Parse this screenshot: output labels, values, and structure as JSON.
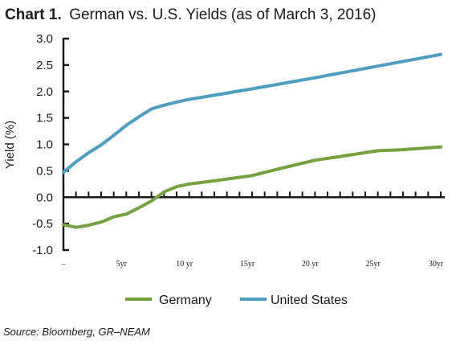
{
  "chart_data": {
    "type": "line",
    "title_prefix": "Chart 1.",
    "title": "German vs. U.S. Yields (as of March 3, 2016)",
    "ylabel": "Yield (%)",
    "xlabel": "",
    "ylim": [
      -1.0,
      3.0
    ],
    "xlim": [
      0,
      30
    ],
    "yticks": [
      {
        "value": 3.0,
        "label": "3.0"
      },
      {
        "value": 2.5,
        "label": "2.5"
      },
      {
        "value": 2.0,
        "label": "2.0"
      },
      {
        "value": 1.5,
        "label": "1.5"
      },
      {
        "value": 1.0,
        "label": "1.0"
      },
      {
        "value": 0.5,
        "label": "0.5"
      },
      {
        "value": 0.0,
        "label": "0.0"
      },
      {
        "value": -0.5,
        "label": "-0.5"
      },
      {
        "value": -1.0,
        "label": "-1.0"
      }
    ],
    "xticks": [
      {
        "value": 0,
        "label": "–"
      },
      {
        "value": 5,
        "label": "5yr"
      },
      {
        "value": 10,
        "label": "10 yr"
      },
      {
        "value": 15,
        "label": "15yr"
      },
      {
        "value": 20,
        "label": "20 yr"
      },
      {
        "value": 25,
        "label": "25yr"
      },
      {
        "value": 30,
        "label": "30yr"
      }
    ],
    "grid": false,
    "legend_position": "bottom",
    "series": [
      {
        "name": "Germany",
        "color": "#76a140",
        "x": [
          0,
          1,
          2,
          3,
          4,
          5,
          6,
          7,
          8,
          9,
          10,
          12,
          15,
          17,
          20,
          22,
          25,
          27,
          30
        ],
        "values": [
          -0.52,
          -0.57,
          -0.53,
          -0.47,
          -0.37,
          -0.32,
          -0.2,
          -0.07,
          0.1,
          0.2,
          0.25,
          0.31,
          0.41,
          0.53,
          0.7,
          0.77,
          0.88,
          0.9,
          0.95
        ]
      },
      {
        "name": "United States",
        "color": "#4f9dbf",
        "x": [
          0,
          1,
          2,
          3,
          4,
          5,
          6,
          7,
          8,
          9,
          10,
          15,
          20,
          25,
          30
        ],
        "values": [
          0.47,
          0.67,
          0.84,
          0.99,
          1.17,
          1.36,
          1.52,
          1.67,
          1.74,
          1.8,
          1.85,
          2.05,
          2.26,
          2.48,
          2.7
        ]
      }
    ]
  },
  "source": "Source: Bloomberg, GR–NEAM"
}
